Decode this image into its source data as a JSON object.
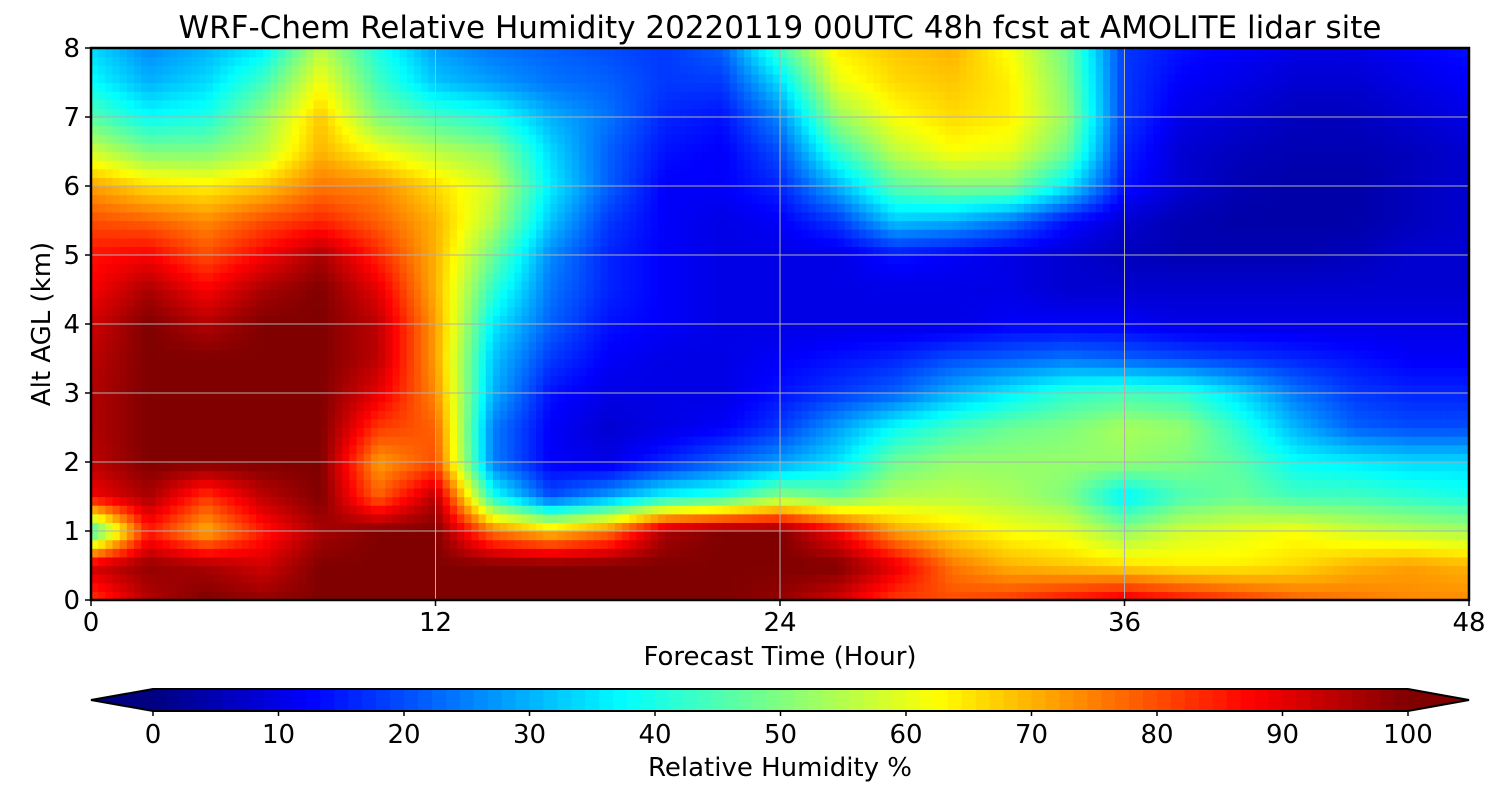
{
  "chart_data": {
    "type": "heatmap",
    "title": "WRF-Chem Relative Humidity 20220119 00UTC 48h fcst at AMOLITE lidar site",
    "xlabel": "Forecast Time (Hour)",
    "ylabel": "Alt AGL (km)",
    "xlim": [
      0,
      48
    ],
    "ylim": [
      0,
      8
    ],
    "x_ticks": [
      0,
      12,
      24,
      36,
      48
    ],
    "y_ticks": [
      0,
      1,
      2,
      3,
      4,
      5,
      6,
      7,
      8
    ],
    "grid": true,
    "colormap": "jet",
    "colorbar": {
      "label": "Relative Humidity %",
      "min": 0,
      "max": 100,
      "ticks": [
        0,
        10,
        20,
        30,
        40,
        50,
        60,
        70,
        80,
        90,
        100
      ],
      "extend": "both",
      "orientation": "horizontal",
      "placement": "bottom"
    },
    "x": [
      0,
      2,
      4,
      6,
      8,
      10,
      12,
      14,
      16,
      18,
      20,
      22,
      24,
      26,
      28,
      30,
      32,
      34,
      36,
      38,
      40,
      42,
      44,
      46,
      48
    ],
    "y": [
      0,
      0.5,
      1,
      1.5,
      2,
      2.5,
      3,
      3.5,
      4,
      4.5,
      5,
      5.5,
      6,
      6.5,
      7,
      7.5,
      8
    ],
    "z": [
      [
        82,
        95,
        100,
        98,
        100,
        100,
        100,
        100,
        100,
        100,
        100,
        100,
        98,
        92,
        82,
        80,
        82,
        86,
        90,
        86,
        82,
        78,
        76,
        74,
        74
      ],
      [
        92,
        98,
        96,
        92,
        100,
        100,
        100,
        100,
        100,
        100,
        100,
        100,
        100,
        100,
        90,
        76,
        70,
        68,
        66,
        64,
        64,
        66,
        70,
        72,
        70
      ],
      [
        40,
        85,
        70,
        85,
        96,
        100,
        100,
        76,
        68,
        76,
        96,
        100,
        100,
        88,
        72,
        66,
        62,
        60,
        52,
        58,
        60,
        62,
        58,
        56,
        54
      ],
      [
        88,
        96,
        82,
        94,
        100,
        78,
        95,
        40,
        20,
        28,
        38,
        42,
        52,
        48,
        55,
        56,
        54,
        50,
        36,
        45,
        48,
        44,
        44,
        42,
        40
      ],
      [
        94,
        100,
        100,
        100,
        100,
        72,
        80,
        25,
        12,
        10,
        16,
        22,
        28,
        35,
        48,
        52,
        52,
        52,
        52,
        50,
        46,
        38,
        36,
        34,
        34
      ],
      [
        95,
        100,
        100,
        100,
        100,
        82,
        78,
        25,
        12,
        8,
        10,
        12,
        18,
        28,
        38,
        44,
        48,
        50,
        54,
        52,
        42,
        30,
        22,
        20,
        20
      ],
      [
        95,
        100,
        100,
        100,
        100,
        90,
        74,
        30,
        14,
        10,
        10,
        10,
        14,
        18,
        22,
        30,
        36,
        42,
        44,
        42,
        34,
        24,
        18,
        16,
        16
      ],
      [
        94,
        100,
        100,
        100,
        100,
        94,
        72,
        32,
        18,
        12,
        10,
        10,
        12,
        14,
        16,
        20,
        22,
        24,
        22,
        20,
        18,
        16,
        14,
        12,
        12
      ],
      [
        92,
        100,
        95,
        100,
        100,
        94,
        72,
        36,
        22,
        14,
        12,
        10,
        10,
        10,
        10,
        10,
        12,
        12,
        12,
        10,
        10,
        10,
        10,
        10,
        10
      ],
      [
        88,
        96,
        88,
        96,
        100,
        90,
        70,
        42,
        24,
        16,
        12,
        10,
        10,
        10,
        10,
        10,
        10,
        8,
        8,
        8,
        8,
        8,
        8,
        8,
        8
      ],
      [
        86,
        88,
        80,
        88,
        96,
        84,
        70,
        48,
        26,
        16,
        12,
        10,
        10,
        10,
        14,
        12,
        10,
        8,
        6,
        5,
        5,
        5,
        6,
        8,
        8
      ],
      [
        80,
        78,
        74,
        80,
        84,
        78,
        70,
        55,
        32,
        18,
        12,
        10,
        12,
        18,
        32,
        30,
        24,
        14,
        8,
        5,
        4,
        4,
        4,
        6,
        8
      ],
      [
        72,
        66,
        64,
        68,
        76,
        74,
        66,
        58,
        36,
        22,
        12,
        12,
        16,
        30,
        46,
        50,
        50,
        36,
        14,
        8,
        5,
        4,
        4,
        6,
        8
      ],
      [
        58,
        50,
        50,
        56,
        70,
        62,
        56,
        52,
        34,
        22,
        14,
        12,
        20,
        42,
        56,
        62,
        60,
        48,
        16,
        8,
        6,
        5,
        5,
        6,
        8
      ],
      [
        46,
        38,
        40,
        52,
        68,
        50,
        44,
        40,
        30,
        24,
        16,
        14,
        26,
        52,
        62,
        66,
        64,
        52,
        18,
        10,
        8,
        6,
        6,
        8,
        10
      ],
      [
        38,
        30,
        34,
        44,
        62,
        44,
        32,
        28,
        24,
        22,
        18,
        18,
        34,
        60,
        66,
        68,
        64,
        50,
        18,
        12,
        10,
        8,
        8,
        10,
        12
      ],
      [
        34,
        26,
        30,
        36,
        56,
        40,
        28,
        24,
        22,
        20,
        18,
        22,
        44,
        64,
        68,
        70,
        62,
        48,
        18,
        14,
        12,
        10,
        10,
        12,
        14
      ]
    ]
  }
}
